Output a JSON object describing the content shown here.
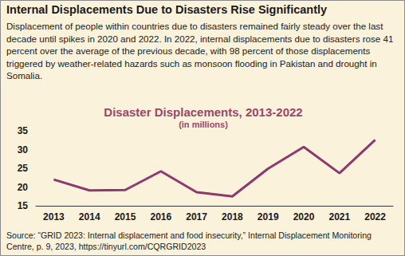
{
  "header": {
    "title": "Internal Displacements Due to Disasters Rise Significantly",
    "text": "Displacement of people within countries due to disasters remained fairly steady over the last decade until spikes in 2020 and 2022. In 2022, internal displacements due to disasters rose 41 percent over the average of the previous decade, with 98 percent of those displacements triggered by weather-related hazards such as monsoon flooding in Pakistan and drought in Somalia."
  },
  "chart_data": {
    "type": "line",
    "title": "Disaster Displacements, 2013-2022",
    "subtitle": "(in millions)",
    "categories": [
      "2013",
      "2014",
      "2015",
      "2016",
      "2017",
      "2018",
      "2019",
      "2020",
      "2021",
      "2022"
    ],
    "values": [
      22.0,
      19.1,
      19.2,
      24.2,
      18.6,
      17.5,
      24.9,
      30.7,
      23.7,
      32.6
    ],
    "color": "#8c3a6e",
    "ylim": [
      15,
      35
    ],
    "yticks": [
      15,
      20,
      25,
      30,
      35
    ],
    "grid": false
  },
  "source": "Source: “GRID 2023: Internal displacement and food insecurity,” Internal Displacement Monitoring Centre, p. 9, 2023, https://tinyurl.com/CQRGRID2023"
}
